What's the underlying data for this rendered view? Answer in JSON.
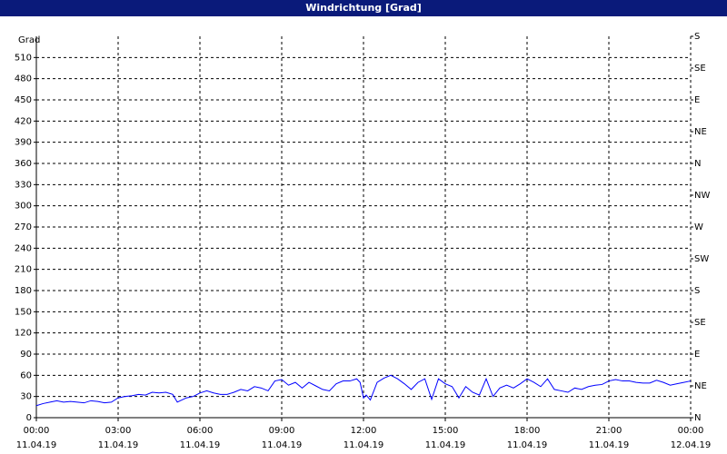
{
  "chart_data": {
    "type": "line",
    "title": "Windrichtung [Grad]",
    "y_label": "Grad",
    "grid": true,
    "xlim": [
      0,
      24
    ],
    "xticks": [
      {
        "value": 0,
        "label": "00:00"
      },
      {
        "value": 3,
        "label": "03:00"
      },
      {
        "value": 6,
        "label": "06:00"
      },
      {
        "value": 9,
        "label": "09:00"
      },
      {
        "value": 12,
        "label": "12:00"
      },
      {
        "value": 15,
        "label": "15:00"
      },
      {
        "value": 18,
        "label": "18:00"
      },
      {
        "value": 21,
        "label": "21:00"
      },
      {
        "value": 24,
        "label": "00:00"
      }
    ],
    "xtick_dates": [
      "11.04.19",
      "11.04.19",
      "11.04.19",
      "11.04.19",
      "11.04.19",
      "11.04.19",
      "11.04.19",
      "11.04.19",
      "12.04.19"
    ],
    "ylim": [
      0,
      540
    ],
    "yticks": [
      0,
      30,
      60,
      90,
      120,
      150,
      180,
      210,
      240,
      270,
      300,
      330,
      360,
      390,
      420,
      450,
      480,
      510
    ],
    "y2lim": [
      0,
      540
    ],
    "y2ticks": [
      {
        "value": 0,
        "label": "N"
      },
      {
        "value": 45,
        "label": "NE"
      },
      {
        "value": 90,
        "label": "E"
      },
      {
        "value": 135,
        "label": "SE"
      },
      {
        "value": 180,
        "label": "S"
      },
      {
        "value": 225,
        "label": "SW"
      },
      {
        "value": 270,
        "label": "W"
      },
      {
        "value": 315,
        "label": "NW"
      },
      {
        "value": 360,
        "label": "N"
      },
      {
        "value": 405,
        "label": "NE"
      },
      {
        "value": 450,
        "label": "E"
      },
      {
        "value": 495,
        "label": "SE"
      },
      {
        "value": 540,
        "label": "S"
      }
    ],
    "x": [
      0,
      0.25,
      0.5,
      0.75,
      1,
      1.25,
      1.5,
      1.75,
      2,
      2.25,
      2.5,
      2.75,
      3,
      3.25,
      3.5,
      3.75,
      4,
      4.25,
      4.5,
      4.75,
      5,
      5.17,
      5.5,
      5.75,
      6,
      6.25,
      6.5,
      6.75,
      7,
      7.25,
      7.5,
      7.75,
      8,
      8.25,
      8.5,
      8.75,
      9,
      9.25,
      9.5,
      9.75,
      10,
      10.25,
      10.5,
      10.75,
      11,
      11.25,
      11.5,
      11.75,
      11.875,
      12,
      12.1,
      12.25,
      12.5,
      12.75,
      13,
      13.25,
      13.5,
      13.75,
      14,
      14.25,
      14.5,
      14.75,
      15,
      15.25,
      15.5,
      15.75,
      16,
      16.25,
      16.5,
      16.75,
      17,
      17.25,
      17.5,
      17.75,
      18,
      18.25,
      18.5,
      18.75,
      19,
      19.25,
      19.5,
      19.75,
      20,
      20.25,
      20.5,
      20.75,
      21,
      21.25,
      21.5,
      21.75,
      22,
      22.25,
      22.5,
      22.75,
      23,
      23.25,
      23.5,
      23.75,
      24
    ],
    "series": [
      {
        "color": "#0000ff",
        "values": [
          17,
          20,
          22,
          24,
          22,
          23,
          22,
          21,
          24,
          23,
          21,
          22,
          28,
          30,
          31,
          33,
          32,
          36,
          35,
          36,
          33,
          22,
          28,
          30,
          35,
          38,
          35,
          33,
          33,
          36,
          40,
          38,
          44,
          42,
          38,
          52,
          54,
          46,
          50,
          42,
          50,
          45,
          40,
          38,
          48,
          52,
          52,
          55,
          50,
          28,
          32,
          25,
          50,
          56,
          60,
          55,
          48,
          40,
          50,
          55,
          26,
          55,
          48,
          44,
          28,
          44,
          36,
          32,
          55,
          30,
          42,
          46,
          42,
          48,
          55,
          50,
          44,
          55,
          40,
          38,
          36,
          42,
          40,
          44,
          46,
          47,
          52,
          54,
          52,
          52,
          50,
          49,
          49,
          53,
          50,
          46,
          48,
          50,
          52
        ]
      }
    ]
  }
}
